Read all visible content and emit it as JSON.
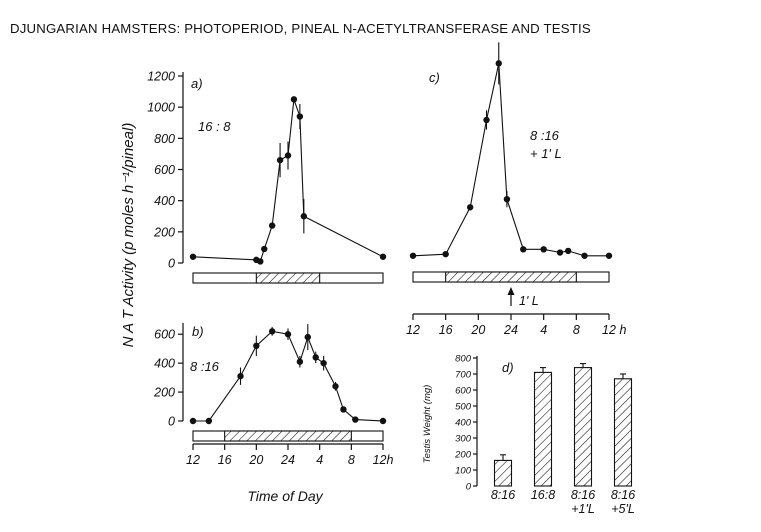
{
  "title": "DJUNGARIAN HAMSTERS: PHOTOPERIOD, PINEAL N-ACETYLTRANSFERASE AND TESTIS",
  "chart_data": [
    {
      "panel": "a)",
      "type": "line",
      "condition": "16 : 8",
      "ylabel": "N A T  Activity  (p moles h⁻¹/pineal)",
      "yticks": [
        "0",
        "200",
        "400",
        "600",
        "800",
        "1000",
        "1200"
      ],
      "ylim": [
        0,
        1200
      ],
      "xlim": [
        12,
        36
      ],
      "light_bar": {
        "dark_start": 20,
        "dark_end": 4
      },
      "points": [
        {
          "x": 12,
          "y": 40,
          "err": 0
        },
        {
          "x": 20,
          "y": 20,
          "err": 0
        },
        {
          "x": 20.5,
          "y": 10,
          "err": 0
        },
        {
          "x": 21,
          "y": 90,
          "err": 0
        },
        {
          "x": 22,
          "y": 240,
          "err": 0
        },
        {
          "x": 23,
          "y": 660,
          "err": 110
        },
        {
          "x": 24,
          "y": 690,
          "err": 90
        },
        {
          "x": 24.75,
          "y": 1050,
          "err": 0
        },
        {
          "x": 25.5,
          "y": 940,
          "err": 80
        },
        {
          "x": 26,
          "y": 300,
          "err": 110
        },
        {
          "x": 36,
          "y": 40,
          "err": 0
        }
      ]
    },
    {
      "panel": "b)",
      "type": "line",
      "condition": "8 :16",
      "yticks": [
        "0",
        "200",
        "400",
        "600"
      ],
      "ylim": [
        0,
        650
      ],
      "xlim": [
        12,
        36
      ],
      "xticks": [
        "12",
        "16",
        "20",
        "24",
        "4",
        "8",
        "12h"
      ],
      "xlabel": "Time  of  Day",
      "light_bar": {
        "dark_start": 16,
        "dark_end": 8
      },
      "points": [
        {
          "x": 12,
          "y": 0,
          "err": 0
        },
        {
          "x": 14,
          "y": 0,
          "err": 0
        },
        {
          "x": 18,
          "y": 310,
          "err": 60
        },
        {
          "x": 20,
          "y": 520,
          "err": 70
        },
        {
          "x": 22,
          "y": 620,
          "err": 30
        },
        {
          "x": 24,
          "y": 600,
          "err": 40
        },
        {
          "x": 25.5,
          "y": 410,
          "err": 40
        },
        {
          "x": 26.5,
          "y": 580,
          "err": 90
        },
        {
          "x": 27.5,
          "y": 440,
          "err": 40
        },
        {
          "x": 28.5,
          "y": 400,
          "err": 50
        },
        {
          "x": 30,
          "y": 240,
          "err": 30
        },
        {
          "x": 31,
          "y": 80,
          "err": 0
        },
        {
          "x": 32.5,
          "y": 10,
          "err": 0
        },
        {
          "x": 36,
          "y": 0,
          "err": 0
        }
      ]
    },
    {
      "panel": "c)",
      "type": "line",
      "condition_line1": "8 :16",
      "condition_line2": "+ 1' L",
      "ylim": [
        0,
        1200
      ],
      "xlim": [
        12,
        36
      ],
      "xticks": [
        "12",
        "16",
        "20",
        "24",
        "4",
        "8",
        "12",
        "h"
      ],
      "light_bar": {
        "dark_start": 16,
        "dark_end": 8
      },
      "pulse_label": "1' L",
      "pulse_time": 24,
      "points": [
        {
          "x": 12,
          "y": 20,
          "err": 0
        },
        {
          "x": 16,
          "y": 30,
          "err": 0
        },
        {
          "x": 19,
          "y": 320,
          "err": 0
        },
        {
          "x": 21,
          "y": 860,
          "err": 60
        },
        {
          "x": 22.5,
          "y": 1210,
          "err": 130
        },
        {
          "x": 23.5,
          "y": 370,
          "err": 50
        },
        {
          "x": 25.5,
          "y": 60,
          "err": 0
        },
        {
          "x": 28,
          "y": 60,
          "err": 0
        },
        {
          "x": 30,
          "y": 40,
          "err": 0
        },
        {
          "x": 31,
          "y": 50,
          "err": 0
        },
        {
          "x": 33,
          "y": 20,
          "err": 0
        },
        {
          "x": 36,
          "y": 20,
          "err": 0
        }
      ]
    },
    {
      "panel": "d)",
      "type": "bar",
      "ylabel": "Testis  Weight  (mg)",
      "yticks": [
        "0",
        "100",
        "200",
        "300",
        "400",
        "500",
        "600",
        "700",
        "800"
      ],
      "ylim": [
        0,
        800
      ],
      "categories": [
        {
          "line1": "8:16",
          "line2": ""
        },
        {
          "line1": "16:8",
          "line2": ""
        },
        {
          "line1": "8:16",
          "line2": "+1'L"
        },
        {
          "line1": "8:16",
          "line2": "+5'L"
        }
      ],
      "values": [
        160,
        710,
        740,
        670
      ],
      "errors": [
        35,
        30,
        25,
        30
      ]
    }
  ]
}
